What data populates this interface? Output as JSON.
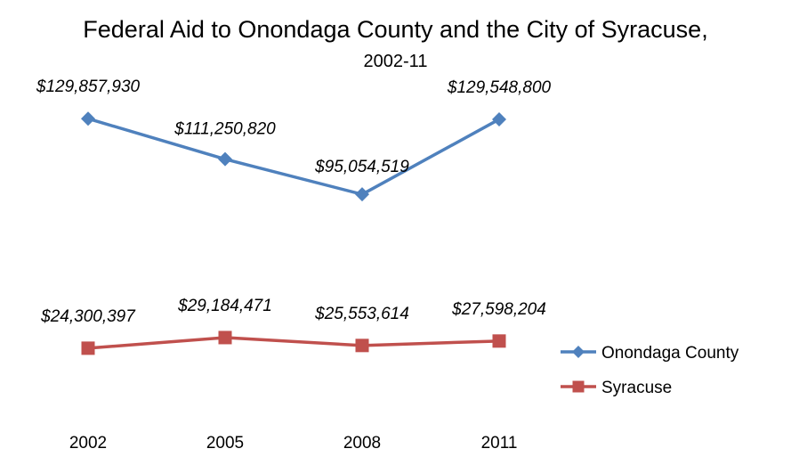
{
  "chart_data": {
    "type": "line",
    "title": "Federal Aid to Onondaga County and the City of Syracuse,",
    "subtitle": "2002-11",
    "categories": [
      "2002",
      "2005",
      "2008",
      "2011"
    ],
    "series": [
      {
        "name": "Onondaga County",
        "values": [
          129857930,
          111250820,
          95054519,
          129548800
        ],
        "labels": [
          "$129,857,930",
          "$111,250,820",
          "$95,054,519",
          "$129,548,800"
        ],
        "color": "#4f81bd",
        "marker": "diamond"
      },
      {
        "name": "Syracuse",
        "values": [
          24300397,
          29184471,
          25553614,
          27598204
        ],
        "labels": [
          "$24,300,397",
          "$29,184,471",
          "$25,553,614",
          "$27,598,204"
        ],
        "color": "#c0504d",
        "marker": "square"
      }
    ],
    "ylim": [
      0,
      145000000
    ],
    "grid": false,
    "legend": "right",
    "xlabel": "",
    "ylabel": ""
  }
}
